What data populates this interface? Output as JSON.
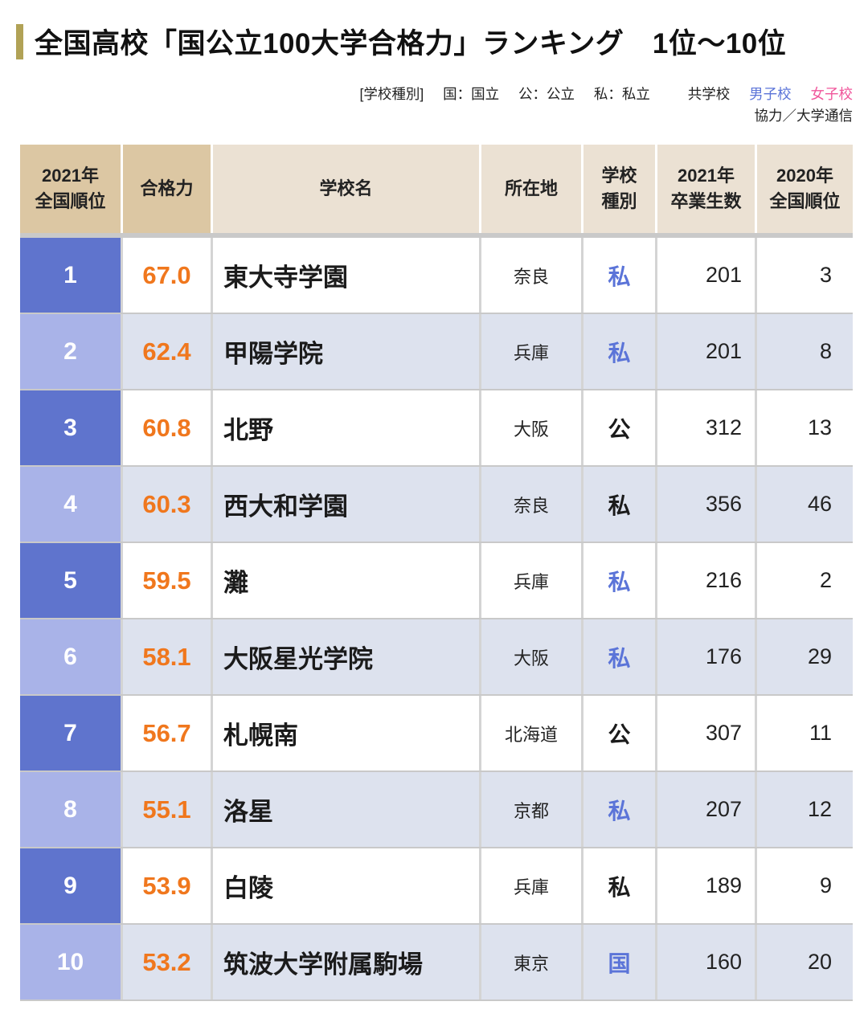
{
  "title": {
    "text": "全国高校「国公立100大学合格力」ランキング　1位〜10位"
  },
  "legend": {
    "prefix": "[学校種別]",
    "types": [
      "国：国立",
      "公：公立",
      "私：私立"
    ],
    "genders": [
      {
        "label": "共学校",
        "color": "#222222"
      },
      {
        "label": "男子校",
        "color": "#5b74d8"
      },
      {
        "label": "女子校",
        "color": "#f0569b"
      }
    ],
    "credit": "協力／大学通信"
  },
  "colors": {
    "accent": "#b1a256",
    "orange": "#f0771d",
    "blue": "#5b74d8",
    "pink": "#f0569b",
    "rank_dark": "#5f74cd",
    "rank_light": "#a9b3e8",
    "row_light": "#dde2ee",
    "header_tan": "#dcc7a3",
    "header_beige": "#ebe1d3"
  },
  "table": {
    "columns": [
      {
        "label": "2021年\n全国順位"
      },
      {
        "label": "合格力"
      },
      {
        "label": "学校名"
      },
      {
        "label": "所在地"
      },
      {
        "label": "学校\n種別"
      },
      {
        "label": "2021年\n卒業生数"
      },
      {
        "label": "2020年\n全国順位"
      }
    ],
    "rows": [
      {
        "rank": "1",
        "power": "67.0",
        "name": "東大寺学園",
        "location": "奈良",
        "type": "私",
        "type_color": "blue",
        "grads": "201",
        "prev": "3"
      },
      {
        "rank": "2",
        "power": "62.4",
        "name": "甲陽学院",
        "location": "兵庫",
        "type": "私",
        "type_color": "blue",
        "grads": "201",
        "prev": "8"
      },
      {
        "rank": "3",
        "power": "60.8",
        "name": "北野",
        "location": "大阪",
        "type": "公",
        "type_color": "black",
        "grads": "312",
        "prev": "13"
      },
      {
        "rank": "4",
        "power": "60.3",
        "name": "西大和学園",
        "location": "奈良",
        "type": "私",
        "type_color": "black",
        "grads": "356",
        "prev": "46"
      },
      {
        "rank": "5",
        "power": "59.5",
        "name": "灘",
        "location": "兵庫",
        "type": "私",
        "type_color": "blue",
        "grads": "216",
        "prev": "2"
      },
      {
        "rank": "6",
        "power": "58.1",
        "name": "大阪星光学院",
        "location": "大阪",
        "type": "私",
        "type_color": "blue",
        "grads": "176",
        "prev": "29"
      },
      {
        "rank": "7",
        "power": "56.7",
        "name": "札幌南",
        "location": "北海道",
        "type": "公",
        "type_color": "black",
        "grads": "307",
        "prev": "11"
      },
      {
        "rank": "8",
        "power": "55.1",
        "name": "洛星",
        "location": "京都",
        "type": "私",
        "type_color": "blue",
        "grads": "207",
        "prev": "12"
      },
      {
        "rank": "9",
        "power": "53.9",
        "name": "白陵",
        "location": "兵庫",
        "type": "私",
        "type_color": "black",
        "grads": "189",
        "prev": "9"
      },
      {
        "rank": "10",
        "power": "53.2",
        "name": "筑波大学附属駒場",
        "location": "東京",
        "type": "国",
        "type_color": "blue",
        "grads": "160",
        "prev": "20"
      }
    ]
  },
  "chart_data": {
    "type": "table",
    "title": "全国高校「国公立100大学合格力」ランキング 1位〜10位",
    "columns": [
      "2021年全国順位",
      "合格力",
      "学校名",
      "所在地",
      "学校種別",
      "2021年卒業生数",
      "2020年全国順位"
    ],
    "rows": [
      [
        1,
        67.0,
        "東大寺学園",
        "奈良",
        "私",
        201,
        3
      ],
      [
        2,
        62.4,
        "甲陽学院",
        "兵庫",
        "私",
        201,
        8
      ],
      [
        3,
        60.8,
        "北野",
        "大阪",
        "公",
        312,
        13
      ],
      [
        4,
        60.3,
        "西大和学園",
        "奈良",
        "私",
        356,
        46
      ],
      [
        5,
        59.5,
        "灘",
        "兵庫",
        "私",
        216,
        2
      ],
      [
        6,
        58.1,
        "大阪星光学院",
        "大阪",
        "私",
        176,
        29
      ],
      [
        7,
        56.7,
        "札幌南",
        "北海道",
        "公",
        307,
        11
      ],
      [
        8,
        55.1,
        "洛星",
        "京都",
        "私",
        207,
        12
      ],
      [
        9,
        53.9,
        "白陵",
        "兵庫",
        "私",
        189,
        9
      ],
      [
        10,
        53.2,
        "筑波大学附属駒場",
        "東京",
        "国",
        160,
        20
      ]
    ]
  }
}
